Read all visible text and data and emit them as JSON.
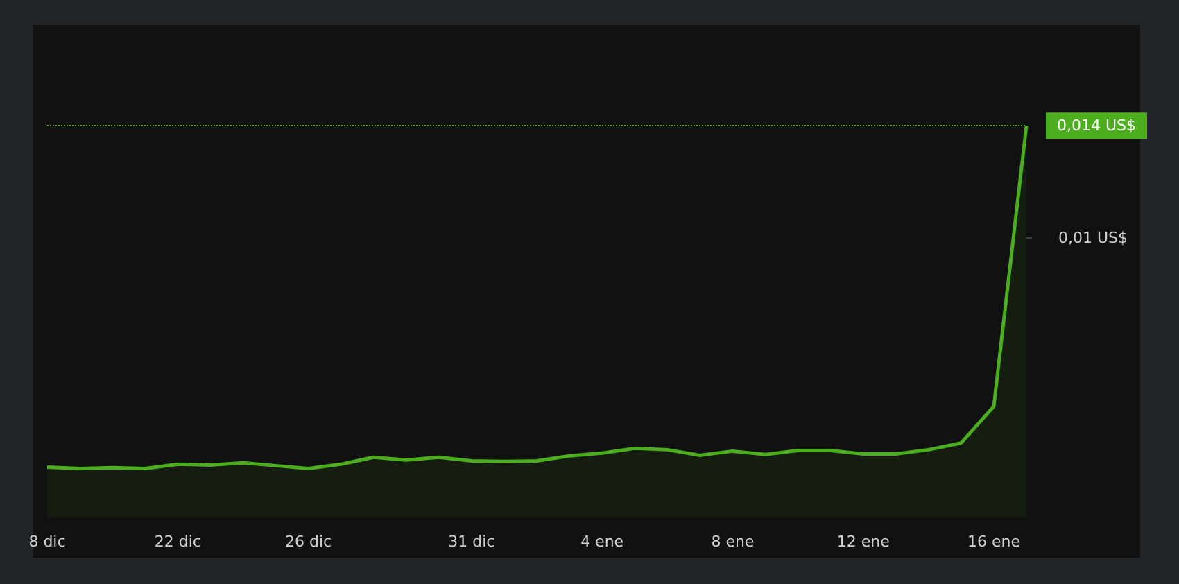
{
  "chart_data": {
    "type": "area",
    "categories": [
      "8 dic",
      null,
      null,
      null,
      "22 dic",
      null,
      null,
      null,
      "26 dic",
      null,
      null,
      null,
      null,
      "31 dic",
      null,
      null,
      null,
      "4 ene",
      null,
      null,
      null,
      "8 ene",
      null,
      null,
      null,
      "12 ene",
      null,
      null,
      null,
      "16 ene",
      null
    ],
    "series": [
      {
        "color": "#4cad1f",
        "values": [
          0.0018,
          0.00175,
          0.00178,
          0.00175,
          0.0019,
          0.00187,
          0.00195,
          0.00185,
          0.00175,
          0.0019,
          0.00215,
          0.00205,
          0.00215,
          0.00202,
          0.002,
          0.00202,
          0.0022,
          0.0023,
          0.00247,
          0.00242,
          0.00222,
          0.00237,
          0.00225,
          0.00239,
          0.00239,
          0.00227,
          0.00227,
          0.00242,
          0.00266,
          0.00397,
          0.014
        ]
      }
    ],
    "ylim": [
      0,
      0.0176
    ],
    "yticks": [
      {
        "value": 0.01,
        "label": "0,01 US$"
      }
    ],
    "ref_lines": [
      {
        "axis": "y",
        "value": 0.014,
        "label": "0,014 US$",
        "color": "#4cad1f",
        "line_style": "dotted"
      }
    ],
    "grid": false,
    "marker": "none"
  }
}
